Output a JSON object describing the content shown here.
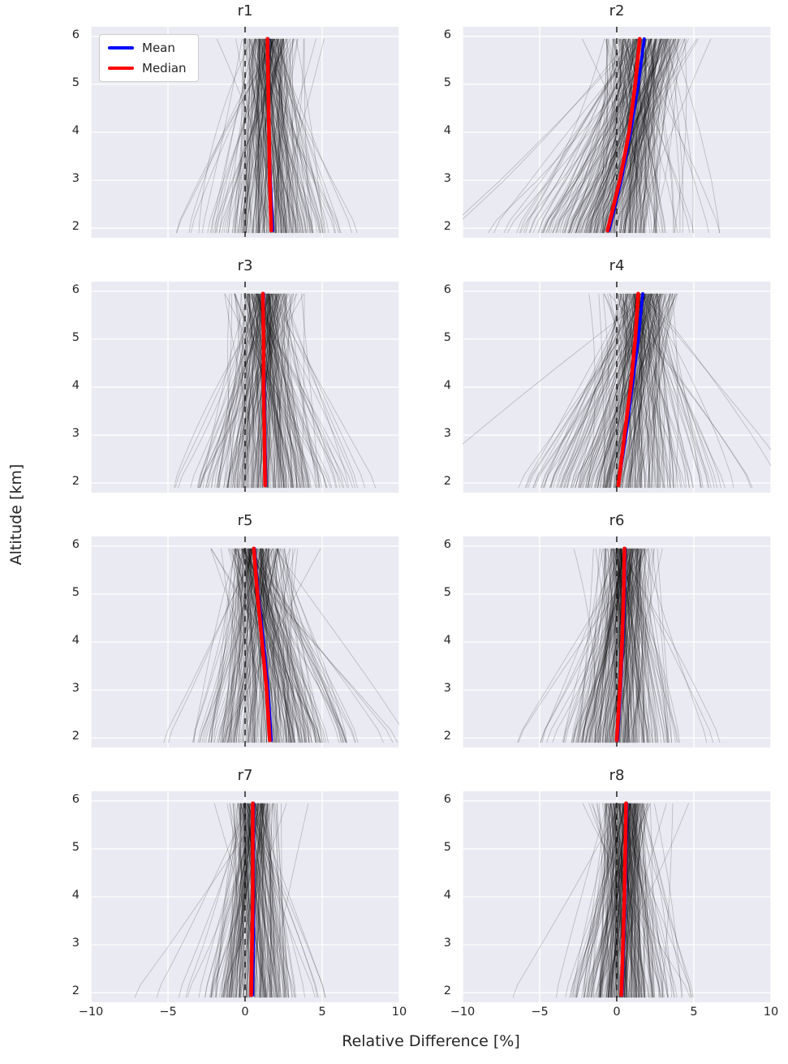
{
  "figure": {
    "xlabel": "Relative Difference [%]",
    "ylabel": "Altitude [km]"
  },
  "legend": {
    "items": [
      {
        "label": "Mean",
        "color": "#0000ff"
      },
      {
        "label": "Median",
        "color": "#ff0000"
      }
    ]
  },
  "chart_data": {
    "type": "line",
    "title": "",
    "xlabel": "Relative Difference [%]",
    "ylabel": "Altitude [km]",
    "x_range": [
      -10,
      10
    ],
    "y_range": [
      1.8,
      6.2
    ],
    "x_ticks": [
      {
        "v": -10,
        "label": "−10"
      },
      {
        "v": -5,
        "label": "−5"
      },
      {
        "v": 0,
        "label": "0"
      },
      {
        "v": 5,
        "label": "5"
      },
      {
        "v": 10,
        "label": "10"
      }
    ],
    "y_ticks": [
      {
        "v": 2,
        "label": "2"
      },
      {
        "v": 3,
        "label": "3"
      },
      {
        "v": 4,
        "label": "4"
      },
      {
        "v": 5,
        "label": "5"
      },
      {
        "v": 6,
        "label": "6"
      }
    ],
    "altitudes_km": [
      2,
      3,
      4,
      5,
      6
    ],
    "zero_reference_line": 0,
    "grid": true,
    "legend_position": "upper-left of first subplot",
    "panel_bg": "#eaeaf2",
    "grid_color": "#ffffff",
    "profile_color": "#000000",
    "mean_color": "#0000ff",
    "median_color": "#ff0000",
    "panels": [
      {
        "title": "r1",
        "mean": [
          1.8,
          1.65,
          1.55,
          1.5,
          1.5
        ],
        "median": [
          1.7,
          1.6,
          1.55,
          1.5,
          1.45
        ],
        "ensemble": {
          "n": 220,
          "spread_top": 0.9,
          "spread_bottom": 2.0
        }
      },
      {
        "title": "r2",
        "mean": [
          -0.5,
          0.3,
          0.9,
          1.4,
          1.8
        ],
        "median": [
          -0.6,
          0.2,
          0.8,
          1.2,
          1.5
        ],
        "ensemble": {
          "n": 260,
          "spread_top": 1.3,
          "spread_bottom": 2.6
        }
      },
      {
        "title": "r3",
        "mean": [
          1.35,
          1.3,
          1.25,
          1.2,
          1.2
        ],
        "median": [
          1.3,
          1.25,
          1.2,
          1.2,
          1.15
        ],
        "ensemble": {
          "n": 230,
          "spread_top": 0.9,
          "spread_bottom": 2.3
        }
      },
      {
        "title": "r4",
        "mean": [
          0.1,
          0.6,
          1.0,
          1.4,
          1.7
        ],
        "median": [
          0.1,
          0.5,
          0.9,
          1.2,
          1.4
        ],
        "ensemble": {
          "n": 240,
          "spread_top": 1.0,
          "spread_bottom": 2.6
        }
      },
      {
        "title": "r5",
        "mean": [
          1.7,
          1.5,
          1.2,
          0.85,
          0.6
        ],
        "median": [
          1.6,
          1.4,
          1.1,
          0.8,
          0.55
        ],
        "ensemble": {
          "n": 240,
          "spread_top": 1.0,
          "spread_bottom": 2.6
        }
      },
      {
        "title": "r6",
        "mean": [
          0.05,
          0.25,
          0.4,
          0.5,
          0.55
        ],
        "median": [
          0.0,
          0.2,
          0.35,
          0.45,
          0.5
        ],
        "ensemble": {
          "n": 240,
          "spread_top": 0.8,
          "spread_bottom": 1.7
        }
      },
      {
        "title": "r7",
        "mean": [
          0.5,
          0.55,
          0.55,
          0.55,
          0.55
        ],
        "median": [
          0.4,
          0.45,
          0.5,
          0.5,
          0.5
        ],
        "ensemble": {
          "n": 200,
          "spread_top": 0.7,
          "spread_bottom": 1.5
        }
      },
      {
        "title": "r8",
        "mean": [
          0.35,
          0.45,
          0.55,
          0.6,
          0.65
        ],
        "median": [
          0.3,
          0.4,
          0.5,
          0.55,
          0.6
        ],
        "ensemble": {
          "n": 260,
          "spread_top": 0.8,
          "spread_bottom": 1.6
        }
      }
    ]
  }
}
